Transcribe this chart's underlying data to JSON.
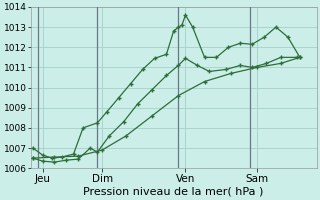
{
  "xlabel": "Pression niveau de la mer( hPa )",
  "bg_color": "#cceee8",
  "grid_color": "#aad4cc",
  "line_color": "#2d6e3a",
  "vline_color": "#667788",
  "ylim": [
    1006,
    1014
  ],
  "yticks": [
    1006,
    1007,
    1008,
    1009,
    1010,
    1011,
    1012,
    1013,
    1014
  ],
  "xlim": [
    0,
    12
  ],
  "xtick_labels": [
    "Jeu",
    "Dim",
    "Ven",
    "Sam"
  ],
  "xtick_positions": [
    0.5,
    3.0,
    6.5,
    9.5
  ],
  "vlines": [
    0.3,
    2.8,
    6.2,
    9.2
  ],
  "series1_x": [
    0.1,
    0.5,
    0.9,
    1.3,
    1.8,
    2.2,
    2.8,
    3.2,
    3.7,
    4.2,
    4.7,
    5.2,
    5.7,
    6.0,
    6.2,
    6.35,
    6.5,
    6.8,
    7.3,
    7.8,
    8.3,
    8.8,
    9.3,
    9.8,
    10.3,
    10.8,
    11.3
  ],
  "series1_y": [
    1007.0,
    1006.65,
    1006.5,
    1006.55,
    1006.7,
    1008.0,
    1008.25,
    1008.8,
    1009.5,
    1010.2,
    1010.9,
    1011.45,
    1011.65,
    1012.8,
    1013.0,
    1013.1,
    1013.6,
    1013.0,
    1011.5,
    1011.5,
    1012.0,
    1012.2,
    1012.15,
    1012.5,
    1013.0,
    1012.5,
    1011.5
  ],
  "series2_x": [
    0.1,
    0.5,
    1.0,
    1.5,
    2.0,
    2.5,
    2.8,
    3.3,
    3.9,
    4.5,
    5.1,
    5.7,
    6.2,
    6.5,
    7.0,
    7.5,
    8.2,
    8.8,
    9.3,
    9.9,
    10.5,
    11.2
  ],
  "series2_y": [
    1006.5,
    1006.35,
    1006.3,
    1006.4,
    1006.45,
    1007.0,
    1006.8,
    1007.6,
    1008.3,
    1009.2,
    1009.9,
    1010.6,
    1011.1,
    1011.45,
    1011.1,
    1010.8,
    1010.9,
    1011.1,
    1011.0,
    1011.2,
    1011.5,
    1011.5
  ],
  "series3_x": [
    0.1,
    1.0,
    2.0,
    3.0,
    4.0,
    5.1,
    6.2,
    7.3,
    8.4,
    9.5,
    10.5,
    11.3
  ],
  "series3_y": [
    1006.5,
    1006.55,
    1006.6,
    1006.9,
    1007.6,
    1008.6,
    1009.6,
    1010.3,
    1010.7,
    1011.0,
    1011.2,
    1011.5
  ],
  "ylabel_fontsize": 6.5,
  "xlabel_fontsize": 8.0,
  "xtick_fontsize": 7.5
}
